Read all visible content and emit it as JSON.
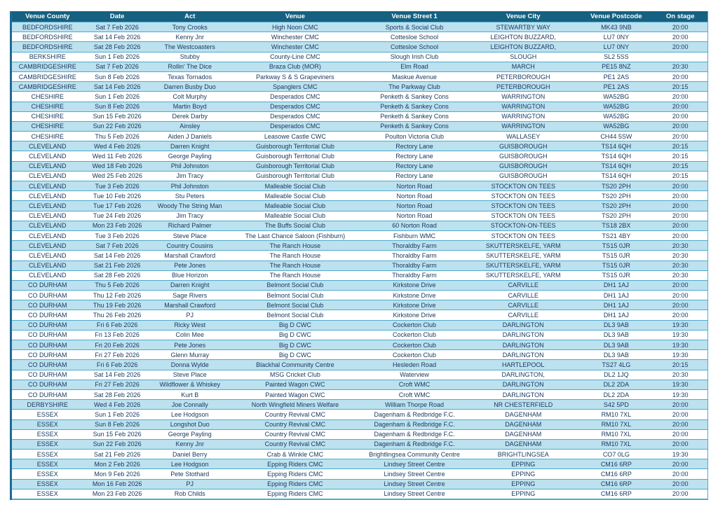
{
  "colors": {
    "header_bg": "#166181",
    "header_text": "#ffffff",
    "row_alt_bg": "#bce1ef",
    "row_bg": "#ffffff",
    "row_border": "#4faace",
    "left_border": "#1d6a96",
    "cell_text": "#17375d"
  },
  "table": {
    "columns": [
      "Venue County",
      "Date",
      "Act",
      "Venue",
      "Venue Street 1",
      "Venue City",
      "Venue Postcode",
      "On stage"
    ],
    "rows": [
      [
        "BEDFORDSHIRE",
        "Sat 7 Feb 2026",
        "Tony Crooks",
        "High Noon CMC",
        "Sports & Social Club",
        "STEWARTBY WAY",
        "MK43 9NB",
        "20:00"
      ],
      [
        "BEDFORDSHIRE",
        "Sat 14 Feb 2026",
        "Kenny Jnr",
        "Winchester CMC",
        "Cottesloe School",
        "LEIGHTON BUZZARD,",
        "LU7 0NY",
        "20:00"
      ],
      [
        "BEDFORDSHIRE",
        "Sat 28 Feb 2026",
        "The Westcoasters",
        "Winchester CMC",
        "Cottesloe School",
        "LEIGHTON BUZZARD,",
        "LU7 0NY",
        "20:00"
      ],
      [
        "BERKSHIRE",
        "Sun 1 Feb 2026",
        "Stubby",
        "County-Line CMC",
        "Slough Irish Club",
        "SLOUGH",
        "SL2 5SS",
        ""
      ],
      [
        "CAMBRIDGESHIRE",
        "Sat 7 Feb 2026",
        "Rollin' The Dice",
        "Braza Club (MOR)",
        "Elm Road",
        "MARCH",
        "PE15 8NZ",
        "20:30"
      ],
      [
        "CAMBRIDGESHIRE",
        "Sun 8 Feb 2026",
        "Texas Tornados",
        "Parkway S & S Grapeviners",
        "Maskue Avenue",
        "PETERBOROUGH",
        "PE1 2AS",
        "20:00"
      ],
      [
        "CAMBRIDGESHIRE",
        "Sat 14 Feb 2026",
        "Darren Busby Duo",
        "Spanglers CMC",
        "The Parkway Club",
        "PETERBOROUGH",
        "PE1 2AS",
        "20:15"
      ],
      [
        "CHESHIRE",
        "Sun 1 Feb 2026",
        "Colt Murphy",
        "Desperados CMC",
        "Penketh & Sankey Cons",
        "WARRINGTON",
        "WA52BG",
        "20:00"
      ],
      [
        "CHESHIRE",
        "Sun 8 Feb 2026",
        "Martin Boyd",
        "Desperados CMC",
        "Penketh & Sankey Cons",
        "WARRINGTON",
        "WA52BG",
        "20:00"
      ],
      [
        "CHESHIRE",
        "Sun 15 Feb 2026",
        "Derek Darby",
        "Desperados CMC",
        "Penketh & Sankey Cons",
        "WARRINGTON",
        "WA52BG",
        "20:00"
      ],
      [
        "CHESHIRE",
        "Sun 22 Feb 2026",
        "Ainsley",
        "Desperados CMC",
        "Penketh & Sankey Cons",
        "WARRINGTON",
        "WA52BG",
        "20:00"
      ],
      [
        "CHESHIRE",
        "Thu 5 Feb 2026",
        "Aiden J Daniels",
        "Leasowe Castle CWC",
        "Poulton Victoria Club",
        "WALLASEY",
        "CH44 5SW",
        "20:00"
      ],
      [
        "CLEVELAND",
        "Wed 4 Feb 2026",
        "Darren Knight",
        "Guisborough Territorial Club",
        "Rectory Lane",
        "GUISBOROUGH",
        "TS14 6QH",
        "20:15"
      ],
      [
        "CLEVELAND",
        "Wed 11 Feb 2026",
        "George Payling",
        "Guisborough Territorial Club",
        "Rectory Lane",
        "GUISBOROUGH",
        "TS14 6QH",
        "20:15"
      ],
      [
        "CLEVELAND",
        "Wed 18 Feb 2026",
        "Phil Johnston",
        "Guisborough Territorial Club",
        "Rectory Lane",
        "GUISBOROUGH",
        "TS14 6QH",
        "20:15"
      ],
      [
        "CLEVELAND",
        "Wed 25 Feb 2026",
        "Jim Tracy",
        "Guisborough Territorial Club",
        "Rectory Lane",
        "GUISBOROUGH",
        "TS14 6QH",
        "20:15"
      ],
      [
        "CLEVELAND",
        "Tue 3 Feb 2026",
        "Phil Johnston",
        "Malleable Social Club",
        "Norton Road",
        "STOCKTON ON TEES",
        "TS20 2PH",
        "20:00"
      ],
      [
        "CLEVELAND",
        "Tue 10 Feb 2026",
        "Stu Peters",
        "Malleable Social Club",
        "Norton Road",
        "STOCKTON ON TEES",
        "TS20 2PH",
        "20:00"
      ],
      [
        "CLEVELAND",
        "Tue 17 Feb 2026",
        "Woody The String Man",
        "Malleable Social Club",
        "Norton Road",
        "STOCKTON ON TEES",
        "TS20 2PH",
        "20:00"
      ],
      [
        "CLEVELAND",
        "Tue 24 Feb 2026",
        "Jim Tracy",
        "Malleable Social Club",
        "Norton Road",
        "STOCKTON ON TEES",
        "TS20 2PH",
        "20:00"
      ],
      [
        "CLEVELAND",
        "Mon 23 Feb 2026",
        "Richard Palmer",
        "The Buffs Social Club",
        "60 Norton Road",
        "STOCKTON-ON-TEES",
        "TS18 2BX",
        "20:00"
      ],
      [
        "CLEVELAND",
        "Tue 3 Feb 2026",
        "Steve Place",
        "The Last Chance Saloon (Fishburn)",
        "Fishburn WMC",
        "STOCKTON ON TEES",
        "TS21 4BY",
        "20:00"
      ],
      [
        "CLEVELAND",
        "Sat 7 Feb 2026",
        "Country Cousins",
        "The Ranch House",
        "Thoraldby Farm",
        "SKUTTERSKELFE, YARM",
        "TS15 0JR",
        "20:30"
      ],
      [
        "CLEVELAND",
        "Sat 14 Feb 2026",
        "Marshall Crawford",
        "The Ranch House",
        "Thoraldby Farm",
        "SKUTTERSKELFE, YARM",
        "TS15 0JR",
        "20:30"
      ],
      [
        "CLEVELAND",
        "Sat 21 Feb 2026",
        "Pete Jones",
        "The Ranch House",
        "Thoraldby Farm",
        "SKUTTERSKELFE, YARM",
        "TS15 0JR",
        "20:30"
      ],
      [
        "CLEVELAND",
        "Sat 28 Feb 2026",
        "Blue Horizon",
        "The Ranch House",
        "Thoraldby Farm",
        "SKUTTERSKELFE, YARM",
        "TS15 0JR",
        "20:30"
      ],
      [
        "CO DURHAM",
        "Thu 5 Feb 2026",
        "Darren Knight",
        "Belmont Social Club",
        "Kirkstone Drive",
        "CARVILLE",
        "DH1 1AJ",
        "20:00"
      ],
      [
        "CO DURHAM",
        "Thu 12 Feb 2026",
        "Sage Rivers",
        "Belmont Social Club",
        "Kirkstone Drive",
        "CARVILLE",
        "DH1 1AJ",
        "20:00"
      ],
      [
        "CO DURHAM",
        "Thu 19 Feb 2026",
        "Marshall Crawford",
        "Belmont Social Club",
        "Kirkstone Drive",
        "CARVILLE",
        "DH1 1AJ",
        "20:00"
      ],
      [
        "CO DURHAM",
        "Thu 26 Feb 2026",
        "PJ",
        "Belmont Social Club",
        "Kirkstone Drive",
        "CARVILLE",
        "DH1 1AJ",
        "20:00"
      ],
      [
        "CO DURHAM",
        "Fri 6 Feb 2026",
        "Ricky West",
        "Big D CWC",
        "Cockerton Club",
        "DARLINGTON",
        "DL3 9AB",
        "19:30"
      ],
      [
        "CO DURHAM",
        "Fri 13 Feb 2026",
        "Colin Mee",
        "Big D CWC",
        "Cockerton Club",
        "DARLINGTON",
        "DL3 9AB",
        "19:30"
      ],
      [
        "CO DURHAM",
        "Fri 20 Feb 2026",
        "Pete Jones",
        "Big D CWC",
        "Cockerton Club",
        "DARLINGTON",
        "DL3 9AB",
        "19:30"
      ],
      [
        "CO DURHAM",
        "Fri 27 Feb 2026",
        "Glenn Murray",
        "Big D CWC",
        "Cockerton Club",
        "DARLINGTON",
        "DL3 9AB",
        "19:30"
      ],
      [
        "CO DURHAM",
        "Fri 6 Feb 2026",
        "Donna Wylde",
        "Blackhal Community Centre",
        "Hesleden Road",
        "HARTLEPOOL",
        "TS27 4LG",
        "20:15"
      ],
      [
        "CO DURHAM",
        "Sat 14 Feb 2026",
        "Steve Place",
        "MSG Cricket Club",
        "Waterview",
        "DARLINGTON,",
        "DL2 1JQ",
        "20:30"
      ],
      [
        "CO DURHAM",
        "Fri 27 Feb 2026",
        "Wildflower & Whiskey",
        "Painted Wagon CWC",
        "Croft WMC",
        "DARLINGTON",
        "DL2 2DA",
        "19:30"
      ],
      [
        "CO DURHAM",
        "Sat 28 Feb 2026",
        "Kurt B",
        "Painted Wagon CWC",
        "Croft WMC",
        "DARLINGTON",
        "DL2 2DA",
        "19:30"
      ],
      [
        "DERBYSHIRE",
        "Wed 4 Feb 2026",
        "Joe Connally",
        "North Wingfield Miners Welfare",
        "William Thorpe Road",
        "NR CHESTERFIELD",
        "S42 5PD",
        "20:00"
      ],
      [
        "ESSEX",
        "Sun 1 Feb 2026",
        "Lee Hodgson",
        "Country Revival CMC",
        "Dagenham & Redbridge F.C.",
        "DAGENHAM",
        "RM10 7XL",
        "20:00"
      ],
      [
        "ESSEX",
        "Sun 8 Feb 2026",
        "Longshot Duo",
        "Country Revival CMC",
        "Dagenham & Redbridge F.C.",
        "DAGENHAM",
        "RM10 7XL",
        "20:00"
      ],
      [
        "ESSEX",
        "Sun 15 Feb 2026",
        "George Payling",
        "Country Revival CMC",
        "Dagenham & Redbridge F.C.",
        "DAGENHAM",
        "RM10 7XL",
        "20:00"
      ],
      [
        "ESSEX",
        "Sun 22 Feb 2026",
        "Kenny Jnr",
        "Country Revival CMC",
        "Dagenham & Redbridge F.C.",
        "DAGENHAM",
        "RM10 7XL",
        "20:00"
      ],
      [
        "ESSEX",
        "Sat 21 Feb 2026",
        "Daniel Berry",
        "Crab & Winkle CMC",
        "Brightlingsea Community Centre",
        "BRIGHTLINGSEA",
        "CO7 0LG",
        "19:30"
      ],
      [
        "ESSEX",
        "Mon 2 Feb 2026",
        "Lee Hodgson",
        "Epping Riders CMC",
        "Lindsey Street Centre",
        "EPPING",
        "CM16 6RP",
        "20:00"
      ],
      [
        "ESSEX",
        "Mon 9 Feb 2026",
        "Pete Stothard",
        "Epping Riders CMC",
        "Lindsey Street Centre",
        "EPPING",
        "CM16 6RP",
        "20:00"
      ],
      [
        "ESSEX",
        "Mon 16 Feb 2026",
        "PJ",
        "Epping Riders CMC",
        "Lindsey Street Centre",
        "EPPING",
        "CM16 6RP",
        "20:00"
      ],
      [
        "ESSEX",
        "Mon 23 Feb 2026",
        "Rob Childs",
        "Epping Riders CMC",
        "Lindsey Street Centre",
        "EPPING",
        "CM16 6RP",
        "20:00"
      ]
    ]
  }
}
